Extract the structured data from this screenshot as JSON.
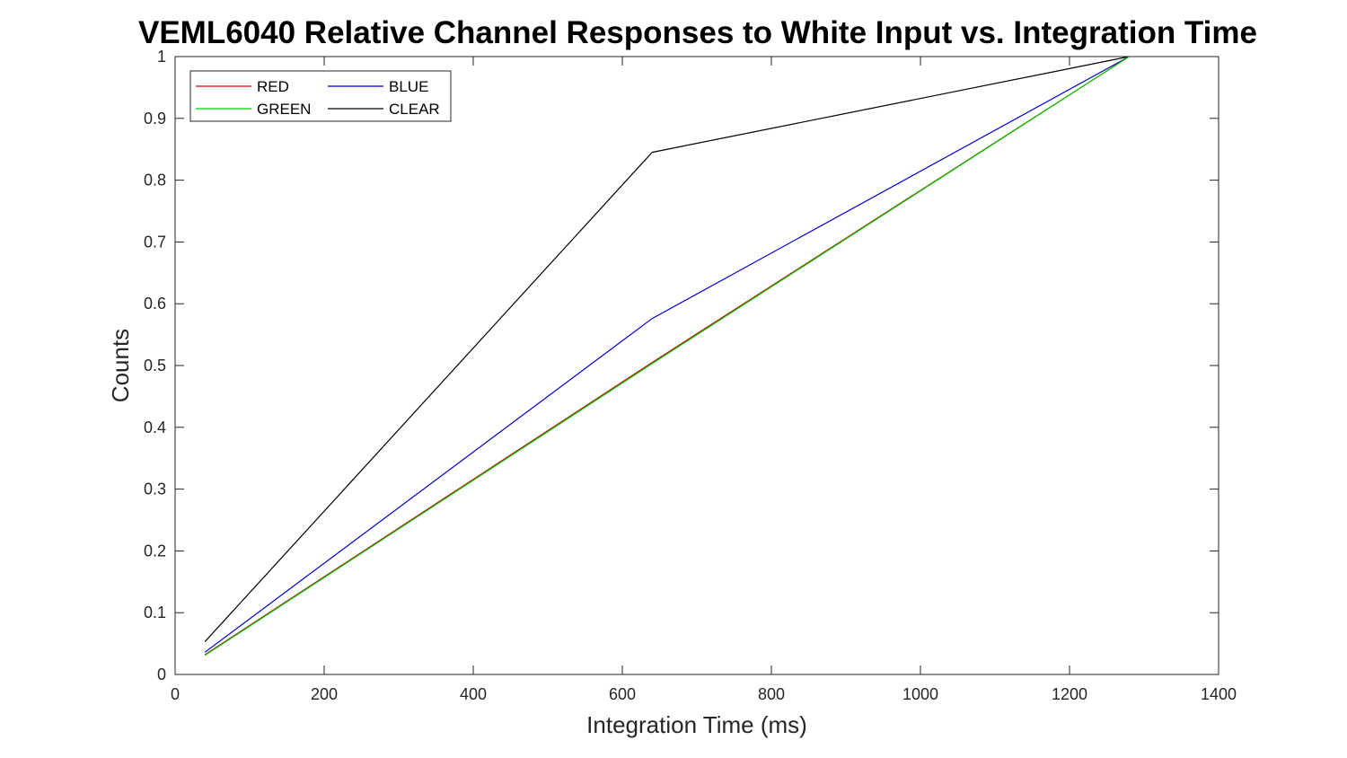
{
  "chart_data": {
    "type": "line",
    "title": "VEML6040 Relative Channel Responses to White Input vs. Integration Time",
    "xlabel": "Integration Time (ms)",
    "ylabel": "Counts",
    "xlim": [
      0,
      1400
    ],
    "ylim": [
      0,
      1
    ],
    "xticks": [
      0,
      200,
      400,
      600,
      800,
      1000,
      1200,
      1400
    ],
    "yticks": [
      0,
      0.1,
      0.2,
      0.3,
      0.4,
      0.5,
      0.6,
      0.7,
      0.8,
      0.9,
      1
    ],
    "xtick_labels": [
      "0",
      "200",
      "400",
      "600",
      "800",
      "1000",
      "1200",
      "1400"
    ],
    "ytick_labels": [
      "0",
      "0.1",
      "0.2",
      "0.3",
      "0.4",
      "0.5",
      "0.6",
      "0.7",
      "0.8",
      "0.9",
      "1"
    ],
    "grid": false,
    "box": true,
    "legend": {
      "placement": "top-left",
      "columns": 2
    },
    "x": [
      40,
      640,
      1280
    ],
    "series": [
      {
        "name": "RED",
        "color": "#cc0000",
        "values": [
          0.032,
          0.505,
          1.0
        ]
      },
      {
        "name": "GREEN",
        "color": "#00cc00",
        "values": [
          0.031,
          0.503,
          1.0
        ]
      },
      {
        "name": "BLUE",
        "color": "#0000cc",
        "values": [
          0.036,
          0.576,
          1.0
        ]
      },
      {
        "name": "CLEAR",
        "color": "#000000",
        "values": [
          0.053,
          0.845,
          1.0
        ]
      }
    ]
  }
}
